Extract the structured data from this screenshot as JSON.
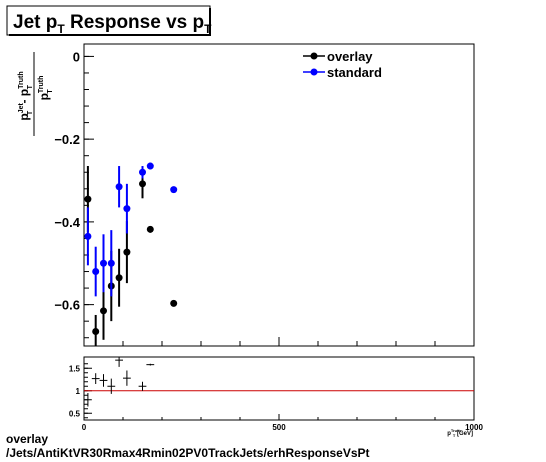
{
  "chart_data": [
    {
      "type": "scatter",
      "title": "Jet p_T Response vs p_T",
      "title_parts": {
        "main": "Jet p",
        "sub": "T",
        "mid": " Response vs p",
        "sub2": "T"
      },
      "ylabel_parts": {
        "p1": "p",
        "p1_sub": "T",
        "p1_sup": "Jet",
        "minus": " - p",
        "p2_sub": "T",
        "p2_sup": "Truth",
        "den": "p",
        "den_sub": "T",
        "den_sup": "Truth"
      },
      "xlim": [
        0,
        1000
      ],
      "ylim": [
        -0.7,
        0.03
      ],
      "y_ticks": [
        0,
        -0.2,
        -0.4,
        -0.6
      ],
      "y_tick_labels": [
        "0",
        "−0.2",
        "−0.4",
        "−0.6"
      ],
      "legend_position": "top-right",
      "series": [
        {
          "name": "overlay",
          "color": "#000000",
          "points": [
            {
              "x": 10,
              "y": -0.345,
              "err": 0.08
            },
            {
              "x": 30,
              "y": -0.665,
              "err": 0.04
            },
            {
              "x": 50,
              "y": -0.615,
              "err": 0.07
            },
            {
              "x": 70,
              "y": -0.555,
              "err": 0.085
            },
            {
              "x": 90,
              "y": -0.535,
              "err": 0.07
            },
            {
              "x": 110,
              "y": -0.473,
              "err": 0.075
            },
            {
              "x": 150,
              "y": -0.308,
              "err": 0.035
            },
            {
              "x": 170,
              "y": -0.418,
              "err": 0.008
            },
            {
              "x": 230,
              "y": -0.597,
              "err": 0.005
            }
          ]
        },
        {
          "name": "standard",
          "color": "#0000ff",
          "points": [
            {
              "x": 10,
              "y": -0.435,
              "err": 0.07
            },
            {
              "x": 30,
              "y": -0.52,
              "err": 0.06
            },
            {
              "x": 50,
              "y": -0.5,
              "err": 0.07
            },
            {
              "x": 70,
              "y": -0.5,
              "err": 0.08
            },
            {
              "x": 90,
              "y": -0.315,
              "err": 0.05
            },
            {
              "x": 110,
              "y": -0.368,
              "err": 0.06
            },
            {
              "x": 150,
              "y": -0.28,
              "err": 0.015
            },
            {
              "x": 170,
              "y": -0.265,
              "err": 0.008
            },
            {
              "x": 230,
              "y": -0.322,
              "err": 0.006
            }
          ]
        }
      ]
    },
    {
      "type": "scatter",
      "xlim": [
        0,
        1000
      ],
      "ylim": [
        0.35,
        1.75
      ],
      "x_ticks": [
        0,
        500,
        1000
      ],
      "x_tick_labels": [
        "0",
        "500",
        "1000"
      ],
      "y_ticks": [
        0.5,
        1,
        1.5
      ],
      "y_tick_labels": [
        "0.5",
        "1",
        "1.5"
      ],
      "xlabel_parts": {
        "p": "p",
        "sup": "Truth",
        "sub": "T",
        "tail": " [GeV]"
      },
      "reference_line": {
        "y": 1,
        "color": "#cc0000"
      },
      "ratio": [
        {
          "x": 10,
          "y": 0.8,
          "err": 0.15
        },
        {
          "x": 30,
          "y": 1.27,
          "err": 0.12
        },
        {
          "x": 50,
          "y": 1.23,
          "err": 0.14
        },
        {
          "x": 70,
          "y": 1.1,
          "err": 0.17
        },
        {
          "x": 90,
          "y": 1.68,
          "err": 0.15
        },
        {
          "x": 110,
          "y": 1.28,
          "err": 0.17
        },
        {
          "x": 150,
          "y": 1.1,
          "err": 0.1
        },
        {
          "x": 170,
          "y": 1.58,
          "err": 0.02
        }
      ]
    }
  ],
  "footer": {
    "line1": "overlay",
    "line2": "/Jets/AntiKtVR30Rmax4Rmin02PV0TrackJets/erhResponseVsPt"
  }
}
